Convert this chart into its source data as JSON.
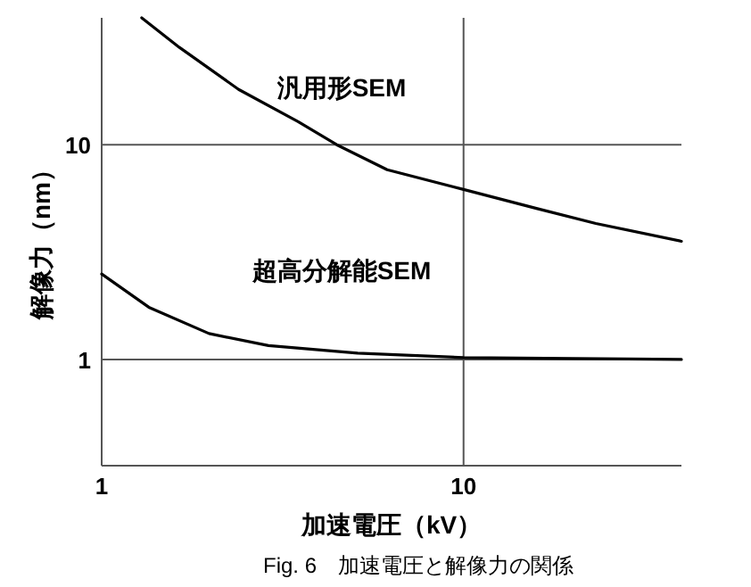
{
  "chart_data": {
    "type": "line",
    "xlabel": "加速電圧（kV）",
    "ylabel": "解像力（nm）",
    "log": "xy",
    "xlim": [
      1,
      40
    ],
    "ylim": [
      0.32,
      39
    ],
    "xticks": [
      1,
      10
    ],
    "yticks": [
      1,
      10
    ],
    "grid": true,
    "annotations": [
      "Fig. 6　加速電圧と解像力の関係"
    ],
    "series": [
      {
        "name": "汎用形SEM",
        "color": "#000000",
        "x": [
          1.29,
          1.64,
          2.39,
          3.49,
          4.46,
          6.15,
          10,
          15.9,
          23.2,
          40
        ],
        "values": [
          39,
          28.4,
          18.1,
          12.8,
          10,
          7.65,
          6.19,
          5.05,
          4.3,
          3.55
        ]
      },
      {
        "name": "超高分解能SEM",
        "color": "#000000",
        "x": [
          1,
          1.35,
          1.98,
          2.89,
          5.1,
          10,
          40
        ],
        "values": [
          2.5,
          1.75,
          1.32,
          1.16,
          1.07,
          1.02,
          1.0
        ]
      }
    ]
  }
}
